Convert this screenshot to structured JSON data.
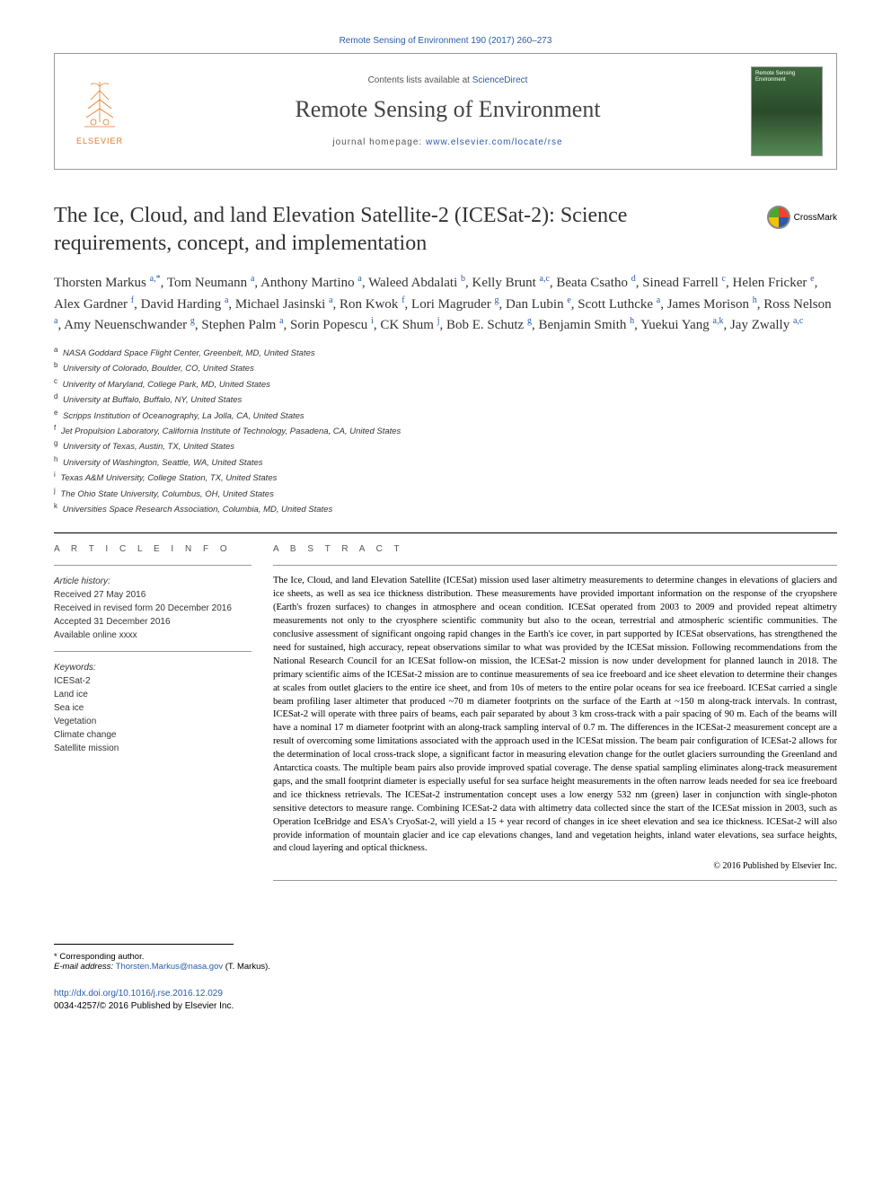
{
  "top_citation": "Remote Sensing of Environment 190 (2017) 260–273",
  "header": {
    "publisher_name": "ELSEVIER",
    "contents_prefix": "Contents lists available at ",
    "contents_link": "ScienceDirect",
    "journal_name": "Remote Sensing of Environment",
    "homepage_prefix": "journal homepage: ",
    "homepage_link": "www.elsevier.com/locate/rse",
    "cover_text": "Remote Sensing Environment"
  },
  "crossmark_label": "CrossMark",
  "title": "The Ice, Cloud, and land Elevation Satellite-2 (ICESat-2): Science requirements, concept, and implementation",
  "authors_html": "Thorsten Markus <sup>a,*</sup>, Tom Neumann <sup>a</sup>, Anthony Martino <sup>a</sup>, Waleed Abdalati <sup>b</sup>, Kelly Brunt <sup>a,c</sup>, Beata Csatho <sup>d</sup>, Sinead Farrell <sup>c</sup>, Helen Fricker <sup>e</sup>, Alex Gardner <sup>f</sup>, David Harding <sup>a</sup>, Michael Jasinski <sup>a</sup>, Ron Kwok <sup>f</sup>, Lori Magruder <sup>g</sup>, Dan Lubin <sup>e</sup>, Scott Luthcke <sup>a</sup>, James Morison <sup>h</sup>, Ross Nelson <sup>a</sup>, Amy Neuenschwander <sup>g</sup>, Stephen Palm <sup>a</sup>, Sorin Popescu <sup>i</sup>, CK Shum <sup>j</sup>, Bob E. Schutz <sup>g</sup>, Benjamin Smith <sup>h</sup>, Yuekui Yang <sup>a,k</sup>, Jay Zwally <sup>a,c</sup>",
  "affiliations": [
    {
      "key": "a",
      "text": "NASA Goddard Space Flight Center, Greenbelt, MD, United States"
    },
    {
      "key": "b",
      "text": "University of Colorado, Boulder, CO, United States"
    },
    {
      "key": "c",
      "text": "Univerity of Maryland, College Park, MD, United States"
    },
    {
      "key": "d",
      "text": "University at Buffalo, Buffalo, NY, United States"
    },
    {
      "key": "e",
      "text": "Scripps Institution of Oceanography, La Jolla, CA, United States"
    },
    {
      "key": "f",
      "text": "Jet Propulsion Laboratory, California Institute of Technology, Pasadena, CA, United States"
    },
    {
      "key": "g",
      "text": "University of Texas, Austin, TX, United States"
    },
    {
      "key": "h",
      "text": "University of Washington, Seattle, WA, United States"
    },
    {
      "key": "i",
      "text": "Texas A&M University, College Station, TX, United States"
    },
    {
      "key": "j",
      "text": "The Ohio State University, Columbus, OH, United States"
    },
    {
      "key": "k",
      "text": "Universities Space Research Association, Columbia, MD, United States"
    }
  ],
  "article_info": {
    "heading": "A R T I C L E   I N F O",
    "history_label": "Article history:",
    "received": "Received 27 May 2016",
    "revised": "Received in revised form 20 December 2016",
    "accepted": "Accepted 31 December 2016",
    "online": "Available online xxxx",
    "keywords_label": "Keywords:",
    "keywords": [
      "ICESat-2",
      "Land ice",
      "Sea ice",
      "Vegetation",
      "Climate change",
      "Satellite mission"
    ]
  },
  "abstract": {
    "heading": "A B S T R A C T",
    "text": "The Ice, Cloud, and land Elevation Satellite (ICESat) mission used laser altimetry measurements to determine changes in elevations of glaciers and ice sheets, as well as sea ice thickness distribution. These measurements have provided important information on the response of the cryopshere (Earth's frozen surfaces) to changes in atmosphere and ocean condition. ICESat operated from 2003 to 2009 and provided repeat altimetry measurements not only to the cryosphere scientific community but also to the ocean, terrestrial and atmospheric scientific communities. The conclusive assessment of significant ongoing rapid changes in the Earth's ice cover, in part supported by ICESat observations, has strengthened the need for sustained, high accuracy, repeat observations similar to what was provided by the ICESat mission. Following recommendations from the National Research Council for an ICESat follow-on mission, the ICESat-2 mission is now under development for planned launch in 2018. The primary scientific aims of the ICESat-2 mission are to continue measurements of sea ice freeboard and ice sheet elevation to determine their changes at scales from outlet glaciers to the entire ice sheet, and from 10s of meters to the entire polar oceans for sea ice freeboard. ICESat carried a single beam profiling laser altimeter that produced ~70 m diameter footprints on the surface of the Earth at ~150 m along-track intervals. In contrast, ICESat-2 will operate with three pairs of beams, each pair separated by about 3 km cross-track with a pair spacing of 90 m. Each of the beams will have a nominal 17 m diameter footprint with an along-track sampling interval of 0.7 m. The differences in the ICESat-2 measurement concept are a result of overcoming some limitations associated with the approach used in the ICESat mission. The beam pair configuration of ICESat-2 allows for the determination of local cross-track slope, a significant factor in measuring elevation change for the outlet glaciers surrounding the Greenland and Antarctica coasts. The multiple beam pairs also provide improved spatial coverage. The dense spatial sampling eliminates along-track measurement gaps, and the small footprint diameter is especially useful for sea surface height measurements in the often narrow leads needed for sea ice freeboard and ice thickness retrievals. The ICESat-2 instrumentation concept uses a low energy 532 nm (green) laser in conjunction with single-photon sensitive detectors to measure range. Combining ICESat-2 data with altimetry data collected since the start of the ICESat mission in 2003, such as Operation IceBridge and ESA's CryoSat-2, will yield a 15 + year record of changes in ice sheet elevation and sea ice thickness. ICESat-2 will also provide information of mountain glacier and ice cap elevations changes, land and vegetation heights, inland water elevations, sea surface heights, and cloud layering and optical thickness.",
    "copyright": "© 2016 Published by Elsevier Inc."
  },
  "corresponding": {
    "label": "* Corresponding author.",
    "email_label": "E-mail address: ",
    "email": "Thorsten.Markus@nasa.gov",
    "name_suffix": " (T. Markus)."
  },
  "footer": {
    "doi": "http://dx.doi.org/10.1016/j.rse.2016.12.029",
    "issn_copyright": "0034-4257/© 2016 Published by Elsevier Inc."
  },
  "colors": {
    "link": "#2a5caa",
    "elsevier_orange": "#e67820",
    "border_gray": "#999999",
    "text_dark": "#333333"
  }
}
